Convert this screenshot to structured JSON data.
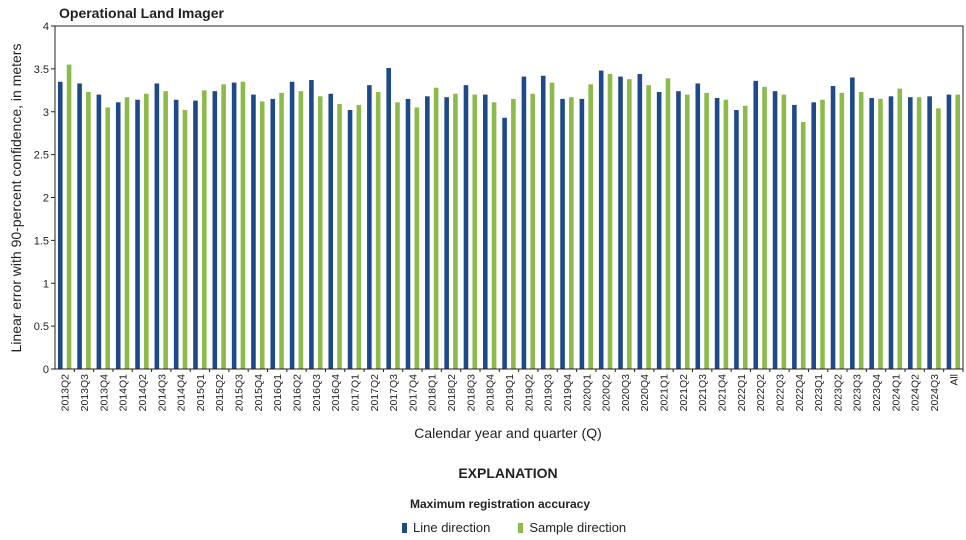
{
  "chart_data": {
    "type": "bar",
    "title": "Operational Land Imager",
    "xlabel": "Calendar year and quarter (Q)",
    "ylabel": "Linear error with 90-percent confidence, in meters",
    "ylim": [
      0,
      4
    ],
    "yticks": [
      "0",
      "0.5",
      "1",
      "1.5",
      "2",
      "2.5",
      "3",
      "3.5",
      "4"
    ],
    "grid": false,
    "categories": [
      "2013Q2",
      "2013Q3",
      "2013Q4",
      "2014Q1",
      "2014Q2",
      "2014Q3",
      "2014Q4",
      "2015Q1",
      "2015Q2",
      "2015Q3",
      "2015Q4",
      "2016Q1",
      "2016Q2",
      "2016Q3",
      "2016Q4",
      "2017Q1",
      "2017Q2",
      "2017Q3",
      "2017Q4",
      "2018Q1",
      "2018Q2",
      "2018Q3",
      "2018Q4",
      "2019Q1",
      "2019Q2",
      "2019Q3",
      "2019Q4",
      "2020Q1",
      "2020Q2",
      "2020Q3",
      "2020Q4",
      "2021Q1",
      "2021Q2",
      "2021Q3",
      "2021Q4",
      "2022Q1",
      "2022Q2",
      "2022Q3",
      "2022Q4",
      "2023Q1",
      "2023Q2",
      "2023Q3",
      "2023Q4",
      "2024Q1",
      "2024Q2",
      "2024Q3",
      "All"
    ],
    "series": [
      {
        "name": "Line direction",
        "color": "#1f4a8a",
        "values": [
          3.35,
          3.33,
          3.2,
          3.11,
          3.14,
          3.33,
          3.14,
          3.13,
          3.24,
          3.34,
          3.2,
          3.15,
          3.35,
          3.37,
          3.21,
          3.02,
          3.31,
          3.51,
          3.15,
          3.18,
          3.17,
          3.31,
          3.2,
          2.93,
          3.41,
          3.42,
          3.15,
          3.15,
          3.48,
          3.41,
          3.44,
          3.23,
          3.24,
          3.33,
          3.16,
          3.02,
          3.36,
          3.24,
          3.08,
          3.11,
          3.3,
          3.4,
          3.16,
          3.18,
          3.17,
          3.18,
          3.2
        ]
      },
      {
        "name": "Sample direction",
        "color": "#8dbb4b",
        "values": [
          3.55,
          3.23,
          3.05,
          3.17,
          3.21,
          3.24,
          3.02,
          3.25,
          3.32,
          3.35,
          3.12,
          3.22,
          3.24,
          3.18,
          3.09,
          3.08,
          3.23,
          3.11,
          3.05,
          3.28,
          3.21,
          3.2,
          3.11,
          3.15,
          3.21,
          3.34,
          3.17,
          3.32,
          3.44,
          3.38,
          3.31,
          3.39,
          3.2,
          3.22,
          3.14,
          3.07,
          3.29,
          3.2,
          2.88,
          3.14,
          3.22,
          3.23,
          3.15,
          3.27,
          3.17,
          3.04,
          3.2
        ]
      }
    ]
  },
  "explanation": {
    "heading": "EXPLANATION",
    "legend_title": "Maximum registration accuracy"
  }
}
